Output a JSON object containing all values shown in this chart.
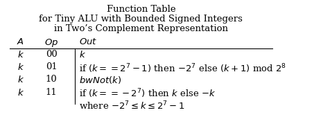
{
  "title_line1": "Function Table",
  "title_line2": "for Tiny ALU with Bounded Signed Integers",
  "title_line3": "in Two’s Complement Representation",
  "header": [
    "$A$",
    "$Op$",
    "$Out$"
  ],
  "rows": [
    [
      "$k$",
      "00",
      "$k$"
    ],
    [
      "$k$",
      "01",
      "if $(k == 2^7 - 1)$ then $-2^7$ else $(k+1)$ mod $2^8$"
    ],
    [
      "$k$",
      "10",
      "$bwNot(k)$"
    ],
    [
      "$k$",
      "11",
      "if $(k == -2^7)$ then $k$ else $-k$"
    ],
    [
      "",
      "",
      "where $-2^7 \\leq k \\leq 2^7 - 1$"
    ]
  ],
  "bg_color": "#ffffff",
  "text_color": "#000000",
  "font_size": 9.5,
  "title_font_size": 9.5
}
